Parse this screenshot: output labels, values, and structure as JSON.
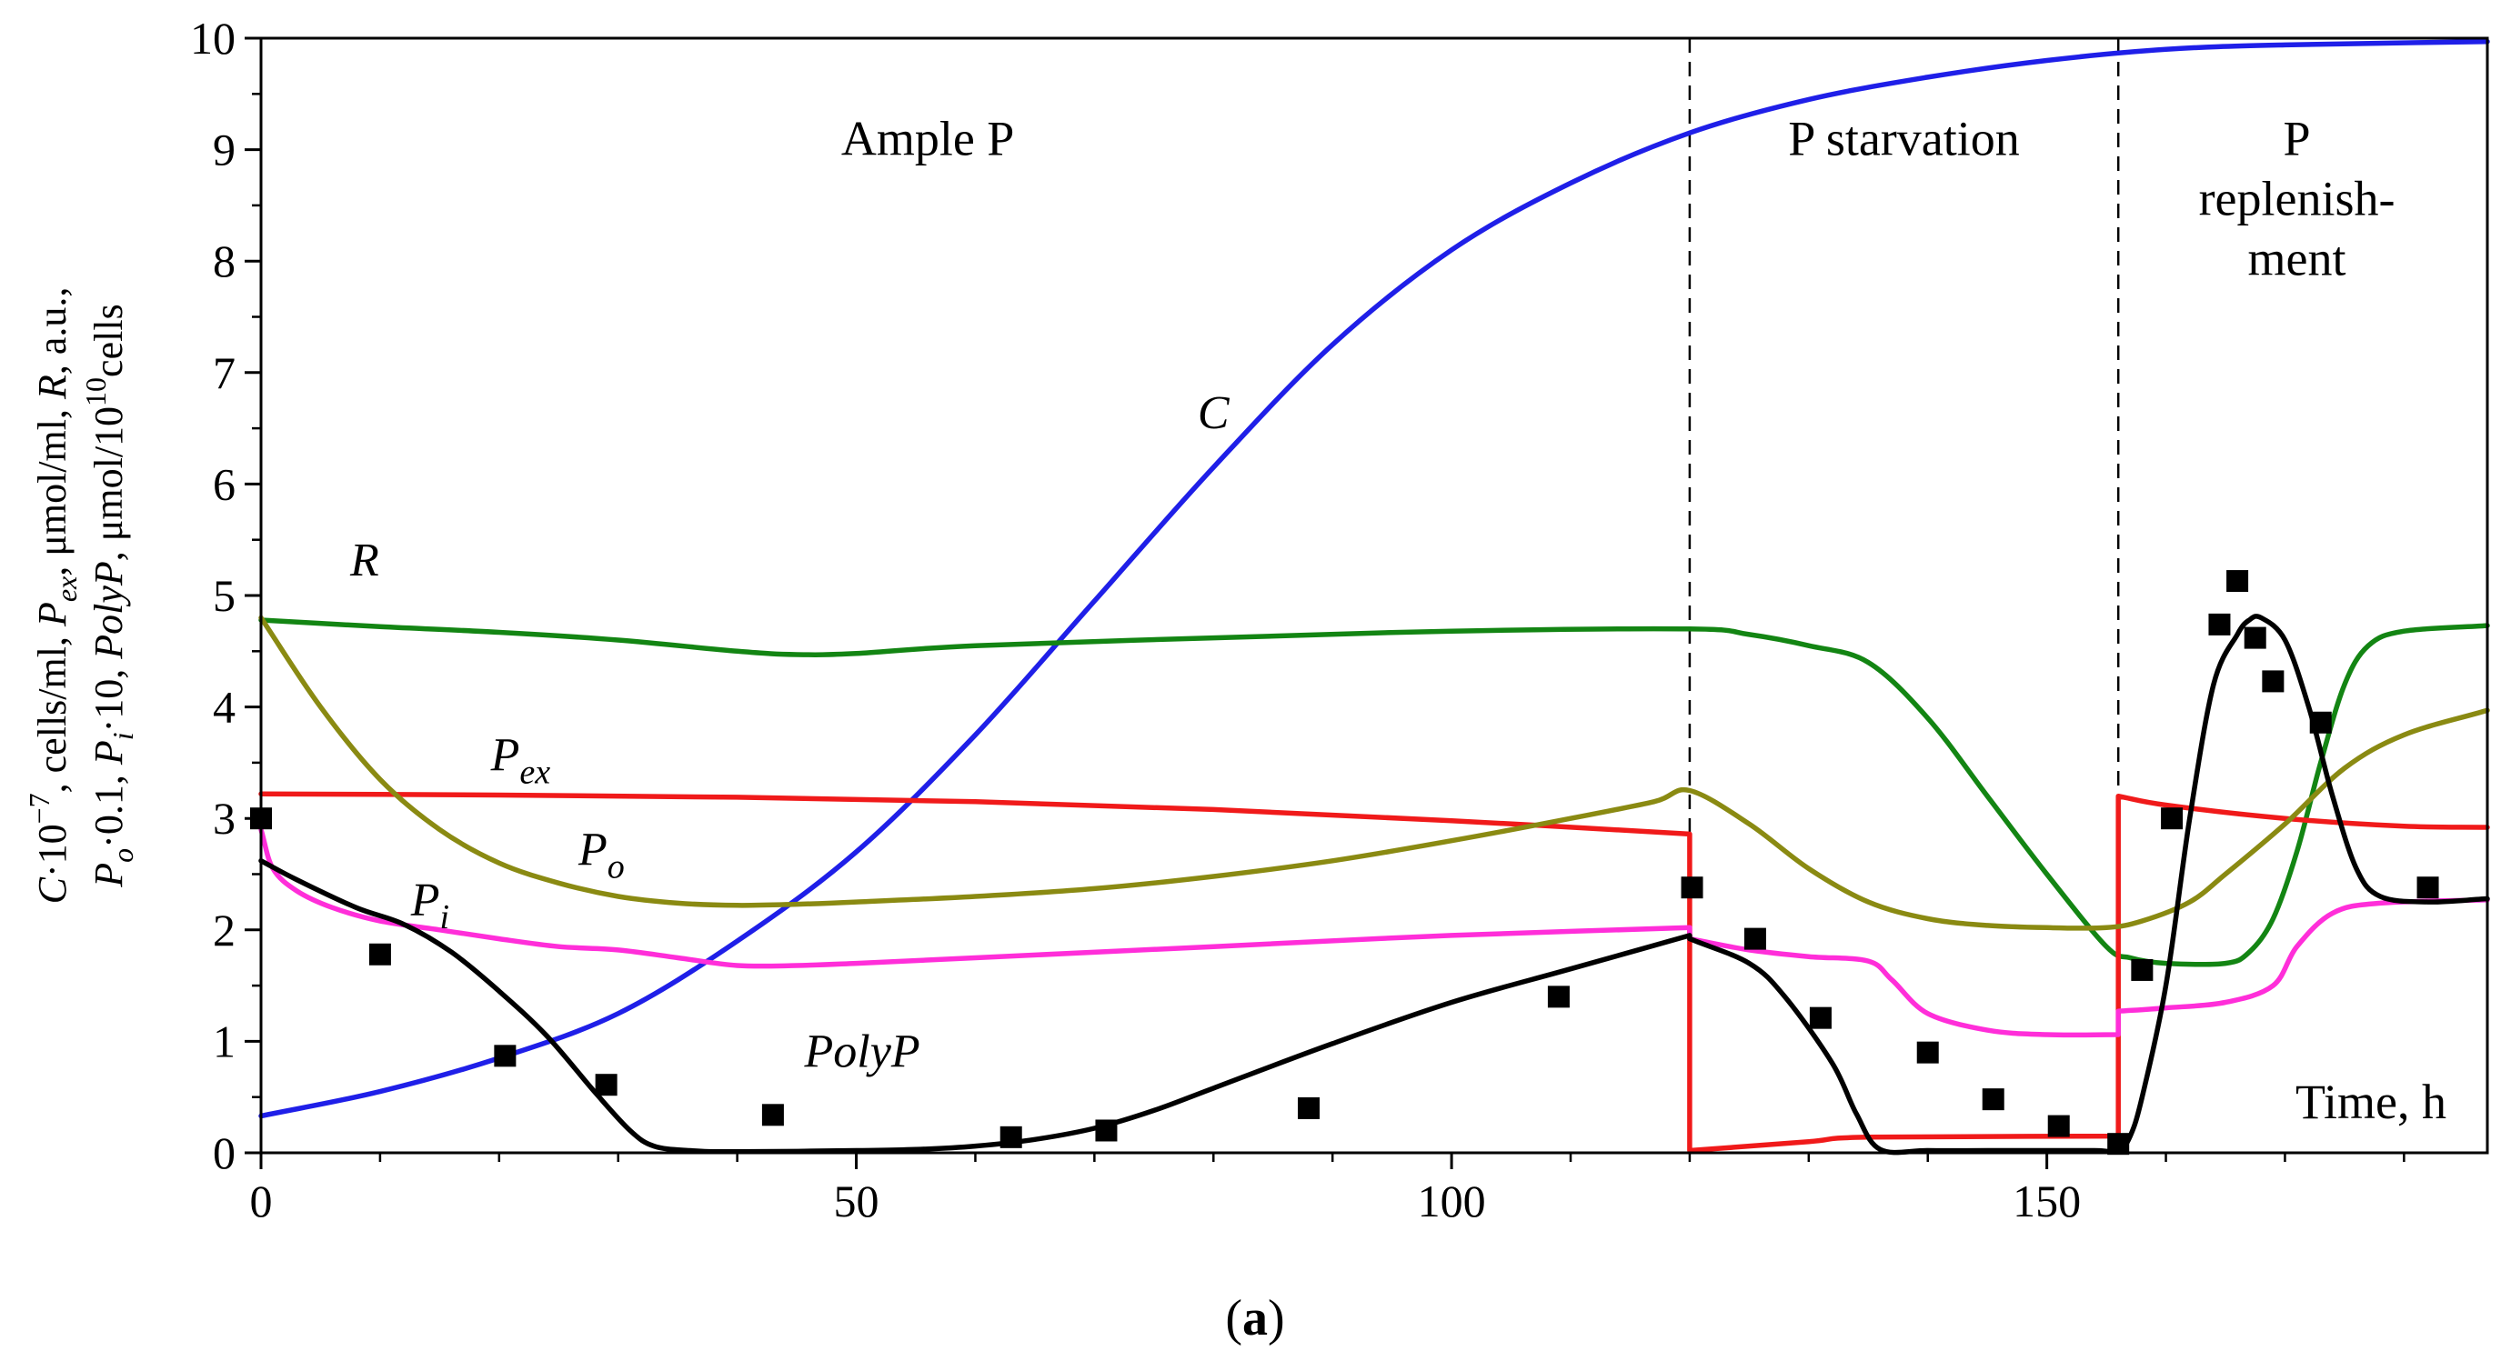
{
  "chart_data": {
    "type": "line",
    "caption": {
      "open": "(",
      "bold": "a",
      "close": ")"
    },
    "xlabel": "Time, h",
    "ylabel": [
      {
        "t": "C",
        "i": true
      },
      {
        "t": "·10"
      },
      {
        "t": "−7",
        "sup": true
      },
      {
        "t": ", cells/ml, "
      },
      {
        "t": "P",
        "i": true
      },
      {
        "t": "ex",
        "i": true,
        "sub": true
      },
      {
        "t": ", μmol/ml, "
      },
      {
        "t": "R",
        "i": true
      },
      {
        "t": ", a.u.,"
      },
      {
        "t": "P",
        "i": true,
        "br": true
      },
      {
        "t": "o",
        "i": true,
        "sub": true
      },
      {
        "t": "·0.1, "
      },
      {
        "t": "P",
        "i": true
      },
      {
        "t": "i",
        "i": true,
        "sub": true
      },
      {
        "t": "·10, "
      },
      {
        "t": "PolyP",
        "i": true
      },
      {
        "t": ", μmol/10"
      },
      {
        "t": "10",
        "sup": true
      },
      {
        "t": "cells"
      }
    ],
    "xlim": [
      0,
      187
    ],
    "ylim": [
      0,
      10
    ],
    "xticks": [
      0,
      50,
      100,
      150
    ],
    "yticks": [
      0,
      1,
      2,
      3,
      4,
      5,
      6,
      7,
      8,
      9,
      10
    ],
    "phase_boundaries": [
      120,
      156
    ],
    "regions": [
      {
        "lines": [
          "Ample P"
        ],
        "x": 56
      },
      {
        "lines": [
          "P starvation"
        ],
        "x": 138
      },
      {
        "lines": [
          "P",
          "replenish-",
          "ment"
        ],
        "x": 171
      }
    ],
    "series": [
      {
        "name": "C",
        "color": "#1f1fe8",
        "x": [
          0,
          10,
          20,
          30,
          40,
          50,
          60,
          70,
          80,
          90,
          100,
          110,
          120,
          130,
          140,
          150,
          160,
          170,
          187
        ],
        "y": [
          0.33,
          0.55,
          0.85,
          1.25,
          1.9,
          2.7,
          3.75,
          4.95,
          6.15,
          7.25,
          8.1,
          8.7,
          9.15,
          9.45,
          9.65,
          9.8,
          9.9,
          9.94,
          9.97
        ]
      },
      {
        "name": "R",
        "color": "#138513",
        "x": [
          0,
          10,
          20,
          30,
          40,
          45,
          50,
          60,
          80,
          100,
          120,
          125,
          130,
          135,
          140,
          145,
          150,
          155,
          157,
          160,
          165,
          167,
          169,
          171,
          173,
          175,
          177,
          180,
          187
        ],
        "y": [
          4.78,
          4.72,
          4.67,
          4.6,
          4.5,
          4.47,
          4.48,
          4.55,
          4.62,
          4.68,
          4.7,
          4.65,
          4.55,
          4.4,
          3.9,
          3.2,
          2.5,
          1.85,
          1.75,
          1.7,
          1.7,
          1.8,
          2.1,
          2.7,
          3.5,
          4.2,
          4.55,
          4.68,
          4.73
        ]
      },
      {
        "name": "Pex",
        "color": "#f01a1a",
        "x": [
          0,
          20,
          40,
          60,
          80,
          100,
          120,
          120,
          130,
          135,
          156,
          156,
          160,
          170,
          180,
          187
        ],
        "y": [
          3.22,
          3.21,
          3.19,
          3.15,
          3.08,
          2.98,
          2.86,
          0.02,
          0.1,
          0.14,
          0.15,
          3.2,
          3.12,
          3.0,
          2.93,
          2.92
        ]
      },
      {
        "name": "Po",
        "color": "#8a8a12",
        "x": [
          0,
          5,
          10,
          15,
          20,
          25,
          30,
          35,
          40,
          45,
          50,
          60,
          70,
          80,
          90,
          100,
          110,
          117,
          120,
          125,
          130,
          135,
          140,
          145,
          150,
          155,
          158,
          162,
          165,
          170,
          175,
          180,
          187
        ],
        "y": [
          4.8,
          4.0,
          3.35,
          2.9,
          2.6,
          2.42,
          2.3,
          2.24,
          2.22,
          2.23,
          2.25,
          2.3,
          2.37,
          2.48,
          2.62,
          2.8,
          3.0,
          3.15,
          3.25,
          2.95,
          2.55,
          2.25,
          2.1,
          2.04,
          2.02,
          2.02,
          2.08,
          2.25,
          2.5,
          2.95,
          3.45,
          3.75,
          3.97
        ]
      },
      {
        "name": "Pi",
        "color": "#ff2ed9",
        "x": [
          0,
          1,
          3,
          6,
          10,
          15,
          20,
          25,
          30,
          35,
          40,
          45,
          50,
          60,
          80,
          100,
          120,
          120,
          125,
          130,
          135,
          137,
          140,
          145,
          150,
          156,
          156,
          160,
          165,
          169,
          171,
          174,
          178,
          187
        ],
        "y": [
          2.9,
          2.55,
          2.35,
          2.2,
          2.08,
          2.0,
          1.92,
          1.85,
          1.82,
          1.75,
          1.68,
          1.68,
          1.7,
          1.75,
          1.85,
          1.95,
          2.02,
          1.92,
          1.82,
          1.76,
          1.72,
          1.55,
          1.25,
          1.1,
          1.06,
          1.06,
          1.27,
          1.3,
          1.35,
          1.5,
          1.85,
          2.15,
          2.24,
          2.27
        ]
      },
      {
        "name": "PolyP",
        "color": "#000000",
        "x": [
          0,
          3,
          8,
          12,
          16,
          20,
          24,
          28,
          31,
          33,
          36,
          40,
          50,
          55,
          60,
          65,
          70,
          75,
          80,
          90,
          100,
          110,
          120,
          120,
          125,
          128,
          132,
          134,
          136,
          140,
          145,
          150,
          154,
          156,
          157,
          158,
          160,
          162,
          164,
          166,
          167,
          168,
          170,
          172,
          174,
          176,
          178,
          182,
          187
        ],
        "y": [
          2.62,
          2.45,
          2.2,
          2.05,
          1.8,
          1.45,
          1.05,
          0.55,
          0.2,
          0.06,
          0.02,
          0.01,
          0.02,
          0.03,
          0.06,
          0.12,
          0.22,
          0.38,
          0.58,
          0.98,
          1.35,
          1.65,
          1.95,
          1.92,
          1.7,
          1.4,
          0.8,
          0.35,
          0.03,
          0.02,
          0.02,
          0.02,
          0.02,
          0.02,
          0.15,
          0.5,
          1.5,
          3.0,
          4.2,
          4.65,
          4.78,
          4.8,
          4.6,
          4.0,
          3.2,
          2.55,
          2.3,
          2.25,
          2.28
        ]
      }
    ],
    "markers": {
      "series": "PolyP measured",
      "x": [
        0,
        10,
        20.5,
        29,
        43,
        63,
        71,
        88,
        109,
        120.2,
        125.5,
        131,
        140,
        145.5,
        151,
        156,
        158,
        160.5,
        164.5,
        166,
        167.5,
        169,
        173,
        182
      ],
      "y": [
        3.0,
        1.78,
        0.87,
        0.61,
        0.34,
        0.14,
        0.2,
        0.4,
        1.4,
        2.38,
        1.92,
        1.21,
        0.9,
        0.48,
        0.24,
        0.08,
        1.64,
        3.0,
        4.74,
        5.13,
        4.62,
        4.23,
        3.86,
        2.38
      ]
    },
    "curve_labels": [
      {
        "text": "C",
        "x": 80,
        "y": 6.5
      },
      {
        "text": "R",
        "x": 8.7,
        "y": 5.18
      },
      {
        "text": "P",
        "sub": "ex",
        "x": 21.8,
        "y": 3.43
      },
      {
        "text": "P",
        "sub": "o",
        "x": 28.6,
        "y": 2.58
      },
      {
        "text": "P",
        "sub": "i",
        "x": 14.2,
        "y": 2.13
      },
      {
        "text": "PolyP",
        "x": 50.5,
        "y": 0.77
      }
    ]
  }
}
